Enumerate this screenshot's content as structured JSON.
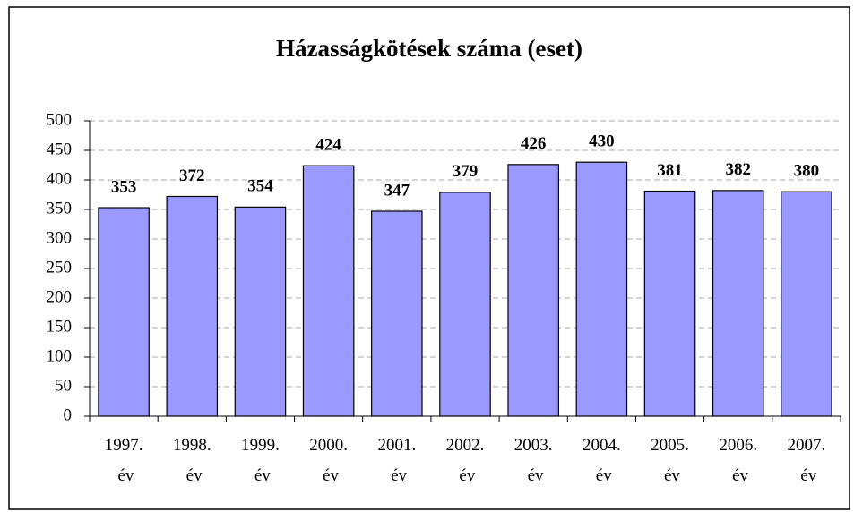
{
  "chart_data": {
    "type": "bar",
    "title": "Házasságkötések száma (eset)",
    "categories": [
      "1997. év",
      "1998. év",
      "1999. év",
      "2000. év",
      "2001. év",
      "2002. év",
      "2003. év",
      "2004. év",
      "2005. év",
      "2006. év",
      "2007. év"
    ],
    "values": [
      353,
      372,
      354,
      424,
      347,
      379,
      426,
      430,
      381,
      382,
      380
    ],
    "color": "#9999ff",
    "ylim": [
      0,
      500
    ],
    "yticks": [
      0,
      50,
      100,
      150,
      200,
      250,
      300,
      350,
      400,
      450,
      500
    ],
    "grid": true
  }
}
